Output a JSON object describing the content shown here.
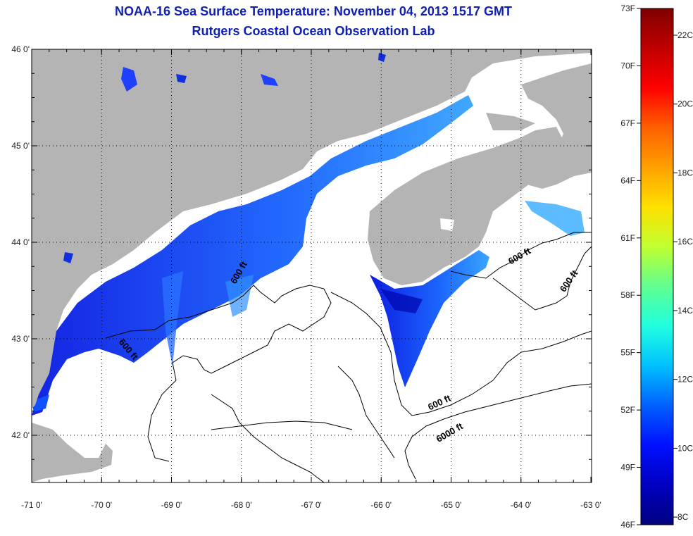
{
  "title": {
    "line1": "NOAA-16 Sea Surface Temperature:  November 04, 2013 1517 GMT",
    "line2": "Rutgers Coastal Ocean Observation Lab"
  },
  "axes": {
    "lon_ticks": [
      "-71 0'",
      "-70 0'",
      "-69 0'",
      "-68 0'",
      "-67 0'",
      "-66 0'",
      "-65 0'",
      "-64 0'",
      "-63 0'"
    ],
    "lat_ticks": [
      "46 0'",
      "45 0'",
      "44 0'",
      "43 0'",
      "42 0'"
    ]
  },
  "contour_labels": [
    {
      "text": "600 ft",
      "lon": -68.0,
      "lat": 43.67
    },
    {
      "text": "600 ft",
      "lon": -69.65,
      "lat": 42.87
    },
    {
      "text": "600 ft",
      "lon": -64.0,
      "lat": 43.83
    },
    {
      "text": "600 ft",
      "lon": -63.28,
      "lat": 43.58
    },
    {
      "text": "600 ft",
      "lon": -65.15,
      "lat": 42.31
    },
    {
      "text": "6000 ft",
      "lon": -65.0,
      "lat": 42.0
    }
  ],
  "colorbar": {
    "fahrenheit": [
      "73F",
      "70F",
      "67F",
      "64F",
      "61F",
      "58F",
      "55F",
      "52F",
      "49F",
      "46F"
    ],
    "celsius": [
      "22C",
      "20C",
      "18C",
      "16C",
      "14C",
      "12C",
      "10C",
      "8C"
    ],
    "colors": [
      "#800000",
      "#c00000",
      "#ff0000",
      "#ff6000",
      "#ffa000",
      "#ffe000",
      "#c0ff30",
      "#60ff90",
      "#20ffe0",
      "#00c0ff",
      "#0060ff",
      "#0010ff",
      "#0000c0",
      "#000080"
    ]
  },
  "colors": {
    "land": "#b4b4b4",
    "title": "#1020b0",
    "water": "#ffffff"
  }
}
